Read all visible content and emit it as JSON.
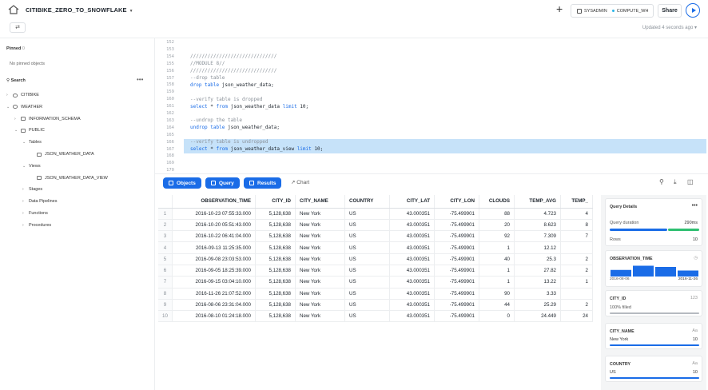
{
  "header": {
    "title": "CITIBIKE_ZERO_TO_SNOWFLAKE",
    "role": "SYSADMIN",
    "warehouse": "COMPUTE_WH",
    "share_label": "Share",
    "updated": "Updated 4 seconds ago"
  },
  "sidebar": {
    "pinned_label": "Pinned",
    "pinned_count": "0",
    "no_pinned": "No pinned objects",
    "search_label": "Search",
    "tree": [
      {
        "label": "CITIBIKE",
        "level": 0,
        "type": "db",
        "open": false
      },
      {
        "label": "WEATHER",
        "level": 0,
        "type": "db",
        "open": true
      },
      {
        "label": "INFORMATION_SCHEMA",
        "level": 1,
        "type": "schema",
        "open": false
      },
      {
        "label": "PUBLIC",
        "level": 1,
        "type": "schema",
        "open": true
      },
      {
        "label": "Tables",
        "level": 2,
        "type": "folder",
        "open": true
      },
      {
        "label": "JSON_WEATHER_DATA",
        "level": 3,
        "type": "table",
        "open": false
      },
      {
        "label": "Views",
        "level": 2,
        "type": "folder",
        "open": true
      },
      {
        "label": "JSON_WEATHER_DATA_VIEW",
        "level": 3,
        "type": "table",
        "open": false
      },
      {
        "label": "Stages",
        "level": 2,
        "type": "folder",
        "open": false
      },
      {
        "label": "Data Pipelines",
        "level": 2,
        "type": "folder",
        "open": false
      },
      {
        "label": "Functions",
        "level": 2,
        "type": "folder",
        "open": false
      },
      {
        "label": "Procedures",
        "level": 2,
        "type": "folder",
        "open": false
      }
    ]
  },
  "editor": {
    "lines": [
      {
        "n": "152",
        "parts": []
      },
      {
        "n": "153",
        "parts": []
      },
      {
        "n": "154",
        "parts": [
          [
            "cmt",
            "//////////////////////////////"
          ]
        ]
      },
      {
        "n": "155",
        "parts": [
          [
            "cmt",
            "//MODULE 8//"
          ]
        ]
      },
      {
        "n": "156",
        "parts": [
          [
            "cmt",
            "//////////////////////////////"
          ]
        ]
      },
      {
        "n": "157",
        "parts": [
          [
            "cmt",
            "--drop table"
          ]
        ]
      },
      {
        "n": "158",
        "parts": [
          [
            "kw",
            "drop table "
          ],
          [
            "pl",
            "json_weather_data;"
          ]
        ]
      },
      {
        "n": "159",
        "parts": []
      },
      {
        "n": "160",
        "parts": [
          [
            "cmt",
            "--verify table is dropped"
          ]
        ]
      },
      {
        "n": "161",
        "parts": [
          [
            "kw",
            "select "
          ],
          [
            "pl",
            "* "
          ],
          [
            "kw",
            "from "
          ],
          [
            "pl",
            "json_weather_data "
          ],
          [
            "kw",
            "limit "
          ],
          [
            "pl",
            "10;"
          ]
        ]
      },
      {
        "n": "162",
        "parts": []
      },
      {
        "n": "163",
        "parts": [
          [
            "cmt",
            "--undrop the table"
          ]
        ]
      },
      {
        "n": "164",
        "parts": [
          [
            "kw",
            "undrop table "
          ],
          [
            "pl",
            "json_weather_data;"
          ]
        ]
      },
      {
        "n": "165",
        "parts": []
      },
      {
        "n": "166",
        "parts": [
          [
            "cmt",
            "--verify table is undropped"
          ]
        ],
        "hl": true
      },
      {
        "n": "167",
        "parts": [
          [
            "kw",
            "select "
          ],
          [
            "pl",
            "* "
          ],
          [
            "kw",
            "from "
          ],
          [
            "pl",
            "json_weather_data_view "
          ],
          [
            "kw",
            "limit "
          ],
          [
            "pl",
            "10;"
          ]
        ],
        "hl": true
      },
      {
        "n": "168",
        "parts": []
      },
      {
        "n": "169",
        "parts": []
      },
      {
        "n": "170",
        "parts": []
      }
    ]
  },
  "results_bar": {
    "objects": "Objects",
    "query": "Query",
    "results": "Results",
    "chart": "Chart"
  },
  "table": {
    "columns": [
      "OBSERVATION_TIME",
      "CITY_ID",
      "CITY_NAME",
      "COUNTRY",
      "CITY_LAT",
      "CITY_LON",
      "CLOUDS",
      "TEMP_AVG",
      "TEMP_"
    ],
    "rows": [
      [
        "1",
        "2016-10-23 07:55:33.000",
        "5,128,638",
        "New York",
        "US",
        "43.000351",
        "-75.499901",
        "88",
        "4.723",
        "4"
      ],
      [
        "2",
        "2016-10-20 05:51:43.000",
        "5,128,638",
        "New York",
        "US",
        "43.000351",
        "-75.499901",
        "20",
        "8.623",
        "8"
      ],
      [
        "3",
        "2016-10-22 06:41:04.000",
        "5,128,638",
        "New York",
        "US",
        "43.000351",
        "-75.499901",
        "92",
        "7.309",
        "7"
      ],
      [
        "4",
        "2016-09-13 11:25:35.000",
        "5,128,638",
        "New York",
        "US",
        "43.000351",
        "-75.499901",
        "1",
        "12.12",
        ""
      ],
      [
        "5",
        "2016-09-08 23:03:53.000",
        "5,128,638",
        "New York",
        "US",
        "43.000351",
        "-75.499901",
        "40",
        "25.3",
        "2"
      ],
      [
        "6",
        "2016-09-05 18:25:39.000",
        "5,128,638",
        "New York",
        "US",
        "43.000351",
        "-75.499901",
        "1",
        "27.82",
        "2"
      ],
      [
        "7",
        "2016-09-15 03:04:10.000",
        "5,128,638",
        "New York",
        "US",
        "43.000351",
        "-75.499901",
        "1",
        "13.22",
        "1"
      ],
      [
        "8",
        "2016-11-26 21:07:52.000",
        "5,128,638",
        "New York",
        "US",
        "43.000351",
        "-75.499901",
        "90",
        "3.33",
        ""
      ],
      [
        "9",
        "2016-08-06 23:31:04.000",
        "5,128,638",
        "New York",
        "US",
        "43.000351",
        "-75.499901",
        "44",
        "25.29",
        "2"
      ],
      [
        "10",
        "2016-08-10 01:24:18.000",
        "5,128,638",
        "New York",
        "US",
        "43.000351",
        "-75.499901",
        "0",
        "24.449",
        "24"
      ]
    ]
  },
  "details": {
    "title": "Query Details",
    "duration_label": "Query duration",
    "duration_value": "290ms",
    "rows_label": "Rows",
    "rows_value": "10",
    "obs_label": "OBSERVATION_TIME",
    "obs_from": "2016-08-06",
    "obs_to": "2016-11-26",
    "obs_hist": [
      0.55,
      0.9,
      0.8,
      0.5
    ],
    "city_id_label": "CITY_ID",
    "city_id_type": "123",
    "city_id_filled": "100% filled",
    "city_name_label": "CITY_NAME",
    "city_name_type": "Aa",
    "city_name_top": "New York",
    "city_name_count": "10",
    "country_label": "COUNTRY",
    "country_type": "Aa",
    "country_top": "US",
    "country_count": "10"
  }
}
